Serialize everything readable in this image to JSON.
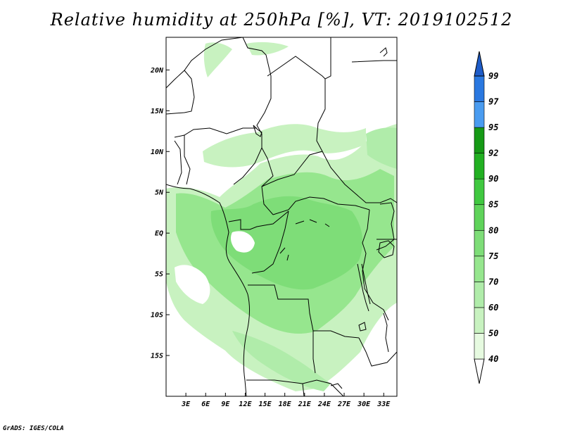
{
  "title": "Relative humidity at 250hPa [%], VT: 2019102512",
  "credit": "GrADS: IGES/COLA",
  "map": {
    "lon_range": [
      0,
      35
    ],
    "lat_range": [
      -20,
      24
    ],
    "lat_ticks": [
      {
        "value": 20,
        "label": "20N"
      },
      {
        "value": 15,
        "label": "15N"
      },
      {
        "value": 10,
        "label": "10N"
      },
      {
        "value": 5,
        "label": "5N"
      },
      {
        "value": 0,
        "label": "EQ"
      },
      {
        "value": -5,
        "label": "5S"
      },
      {
        "value": -10,
        "label": "10S"
      },
      {
        "value": -15,
        "label": "15S"
      }
    ],
    "lon_ticks": [
      {
        "value": 3,
        "label": "3E"
      },
      {
        "value": 6,
        "label": "6E"
      },
      {
        "value": 9,
        "label": "9E"
      },
      {
        "value": 12,
        "label": "12E"
      },
      {
        "value": 15,
        "label": "15E"
      },
      {
        "value": 18,
        "label": "18E"
      },
      {
        "value": 21,
        "label": "21E"
      },
      {
        "value": 24,
        "label": "24E"
      },
      {
        "value": 27,
        "label": "27E"
      },
      {
        "value": 30,
        "label": "30E"
      },
      {
        "value": 33,
        "label": "33E"
      }
    ]
  },
  "colorbar": {
    "levels": [
      "40",
      "50",
      "60",
      "70",
      "75",
      "80",
      "85",
      "90",
      "92",
      "95",
      "97",
      "99"
    ],
    "colors": [
      "#e6fae0",
      "#c8f2c0",
      "#b0ecaa",
      "#96e68e",
      "#7edd78",
      "#5fd35a",
      "#40c840",
      "#22b022",
      "#169a16",
      "#4a9cf0",
      "#2a78e0",
      "#1e5cc8"
    ],
    "below_color": "#ffffff",
    "above_color": "#1e5cc8"
  }
}
